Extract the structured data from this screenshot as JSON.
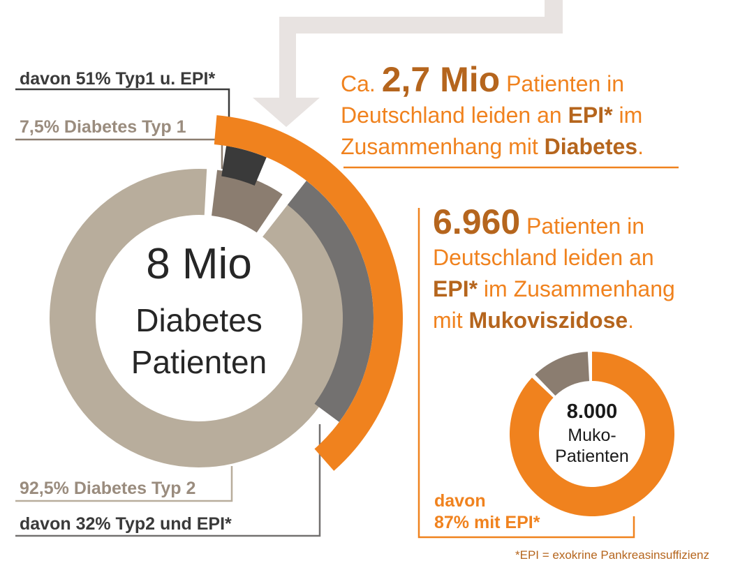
{
  "colors": {
    "orange": "#f0821e",
    "brown_text": "#b5651d",
    "tan": "#b8ad9c",
    "tan_dark": "#8b7d70",
    "gray": "#737170",
    "dark": "#3a3a3a",
    "arrow": "#e8e3e1"
  },
  "labels": {
    "typ1_epi": "davon 51% Typ1 u. EPI*",
    "typ1": "7,5% Diabetes Typ 1",
    "typ2": "92,5% Diabetes Typ 2",
    "typ2_epi": "davon 32% Typ2 und EPI*"
  },
  "center": {
    "line1": "8 Mio",
    "line2": "Diabetes",
    "line3": "Patienten"
  },
  "stat1": {
    "pre": "Ca.",
    "big": "2,7 Mio",
    "text_a": "Patienten in",
    "text_b": "Deutschland leiden an",
    "bold_b": "EPI*",
    "text_b2": "im",
    "text_c": "Zusammenhang mit",
    "bold_c": "Diabetes",
    "dot": "."
  },
  "stat2": {
    "big": "6.960",
    "text_a": "Patienten in",
    "text_b": "Deutschland leiden an",
    "bold_c": "EPI*",
    "text_c": "im Zusammenhang",
    "text_d": "mit",
    "bold_d": "Mukoviszidose",
    "dot": "."
  },
  "muko": {
    "num": "8.000",
    "line1": "Muko-",
    "line2": "Patienten",
    "davon": "davon",
    "pct": "87% mit EPI*"
  },
  "footnote": "*EPI = exokrine Pankreasinsuffizienz",
  "chart_data": [
    {
      "type": "pie",
      "title": "8 Mio Diabetes Patienten",
      "total": 8000000,
      "slices": [
        {
          "label": "7,5% Diabetes Typ 1",
          "value": 7.5,
          "color": "#8b7d70"
        },
        {
          "label": "92,5% Diabetes Typ 2",
          "value": 92.5,
          "color": "#b8ad9c"
        }
      ],
      "epi_shares": [
        {
          "label": "davon 51% Typ1 u. EPI*",
          "of": "Diabetes Typ 1",
          "value": 51,
          "color": "#3a3a3a"
        },
        {
          "label": "davon 32% Typ2 und EPI*",
          "of": "Diabetes Typ 2",
          "value": 32,
          "color": "#737170"
        }
      ]
    },
    {
      "type": "pie",
      "title": "8.000 Muko-Patienten",
      "slices": [
        {
          "label": "87% mit EPI*",
          "value": 87,
          "color": "#f0821e"
        },
        {
          "label": "",
          "value": 13,
          "color": "#8b7d70"
        }
      ]
    }
  ]
}
